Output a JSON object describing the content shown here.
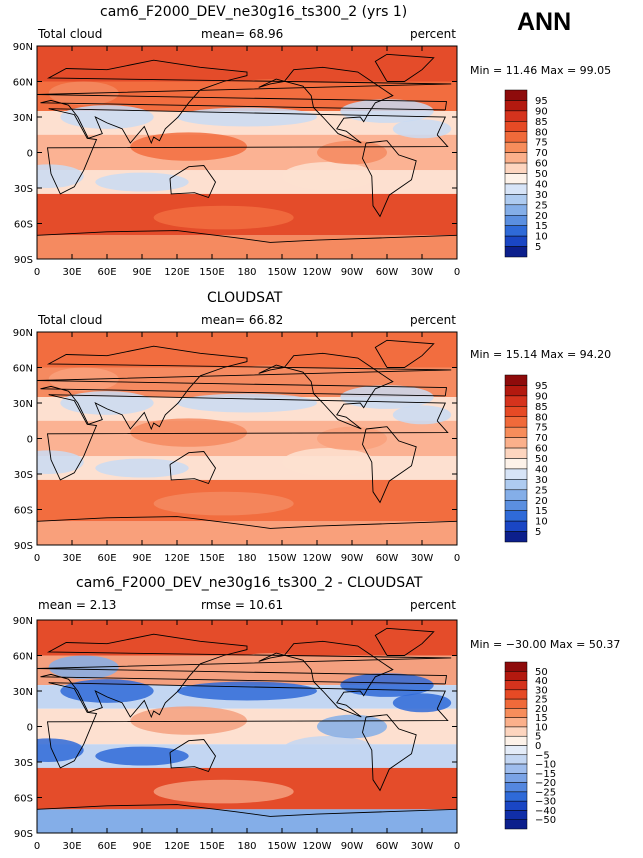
{
  "season": "ANN",
  "panels": [
    {
      "title": "cam6_F2000_DEV_ne30g16_ts300_2 (yrs 1)",
      "left_label": "Total cloud",
      "center_label": "mean=   68.96",
      "right_label": "percent",
      "minmax": "Min =    11.46  Max =    99.05",
      "colorbar_labels": [
        "95",
        "90",
        "85",
        "80",
        "75",
        "70",
        "60",
        "50",
        "40",
        "30",
        "25",
        "20",
        "15",
        "10",
        "5"
      ],
      "colorbar_colors": [
        "#8e0b0b",
        "#b3190f",
        "#d5331d",
        "#e64a25",
        "#f06a3a",
        "#f78d5b",
        "#fbb08b",
        "#fdd5bf",
        "#fdf2e9",
        "#d7e4f7",
        "#aecbf0",
        "#84aee8",
        "#5b8fe0",
        "#2f6ad8",
        "#1a46c4",
        "#0c1f8c"
      ],
      "map_colors": [
        "#f26d3f",
        "#e44c2a",
        "#fbb293",
        "#fde0d0",
        "#f58a60",
        "#c9dbf3"
      ]
    },
    {
      "title": "CLOUDSAT",
      "left_label": "Total cloud",
      "center_label": "mean=   66.82",
      "right_label": "percent",
      "minmax": "Min =    15.14  Max =    94.20",
      "colorbar_labels": [
        "95",
        "90",
        "85",
        "80",
        "75",
        "70",
        "60",
        "50",
        "40",
        "30",
        "25",
        "20",
        "15",
        "10",
        "5"
      ],
      "colorbar_colors": [
        "#8e0b0b",
        "#b3190f",
        "#d5331d",
        "#e64a25",
        "#f06a3a",
        "#f78d5b",
        "#fbb08b",
        "#fdd5bf",
        "#fdf2e9",
        "#d7e4f7",
        "#aecbf0",
        "#84aee8",
        "#5b8fe0",
        "#2f6ad8",
        "#1a46c4",
        "#0c1f8c"
      ],
      "map_colors": [
        "#f58a60",
        "#f26d3f",
        "#fbb293",
        "#fde0d0",
        "#f9a07b",
        "#c9dbf3"
      ]
    },
    {
      "title": "cam6_F2000_DEV_ne30g16_ts300_2 - CLOUDSAT",
      "left_label": "mean =     2.13",
      "center_label": "rmse =    10.61",
      "right_label": "percent",
      "minmax": "Min = −30.00  Max =    50.37",
      "colorbar_labels": [
        "50",
        "40",
        "30",
        "25",
        "20",
        "15",
        "10",
        "5",
        "0",
        "−5",
        "−10",
        "−15",
        "−20",
        "−25",
        "−30",
        "−40",
        "−50"
      ],
      "colorbar_colors": [
        "#8e0b0b",
        "#b3190f",
        "#d5331d",
        "#e64a25",
        "#f06a3a",
        "#f78d5b",
        "#fbb08b",
        "#fdd5bf",
        "#fdf2e9",
        "#e4ecf8",
        "#c3d6f2",
        "#9fbded",
        "#7aa3e6",
        "#5487df",
        "#2f6ad8",
        "#1a46c4",
        "#102ea8",
        "#0c1f8c"
      ],
      "map_colors": [
        "#f4a07f",
        "#e44c2a",
        "#fde0d0",
        "#c3d6f2",
        "#84aee8",
        "#2f6ad8"
      ]
    }
  ],
  "lat_labels": [
    "90N",
    "60N",
    "30N",
    "0",
    "30S",
    "60S",
    "90S"
  ],
  "lon_labels": [
    "0",
    "30E",
    "60E",
    "90E",
    "120E",
    "150E",
    "180",
    "150W",
    "120W",
    "90W",
    "60W",
    "30W",
    "0"
  ]
}
